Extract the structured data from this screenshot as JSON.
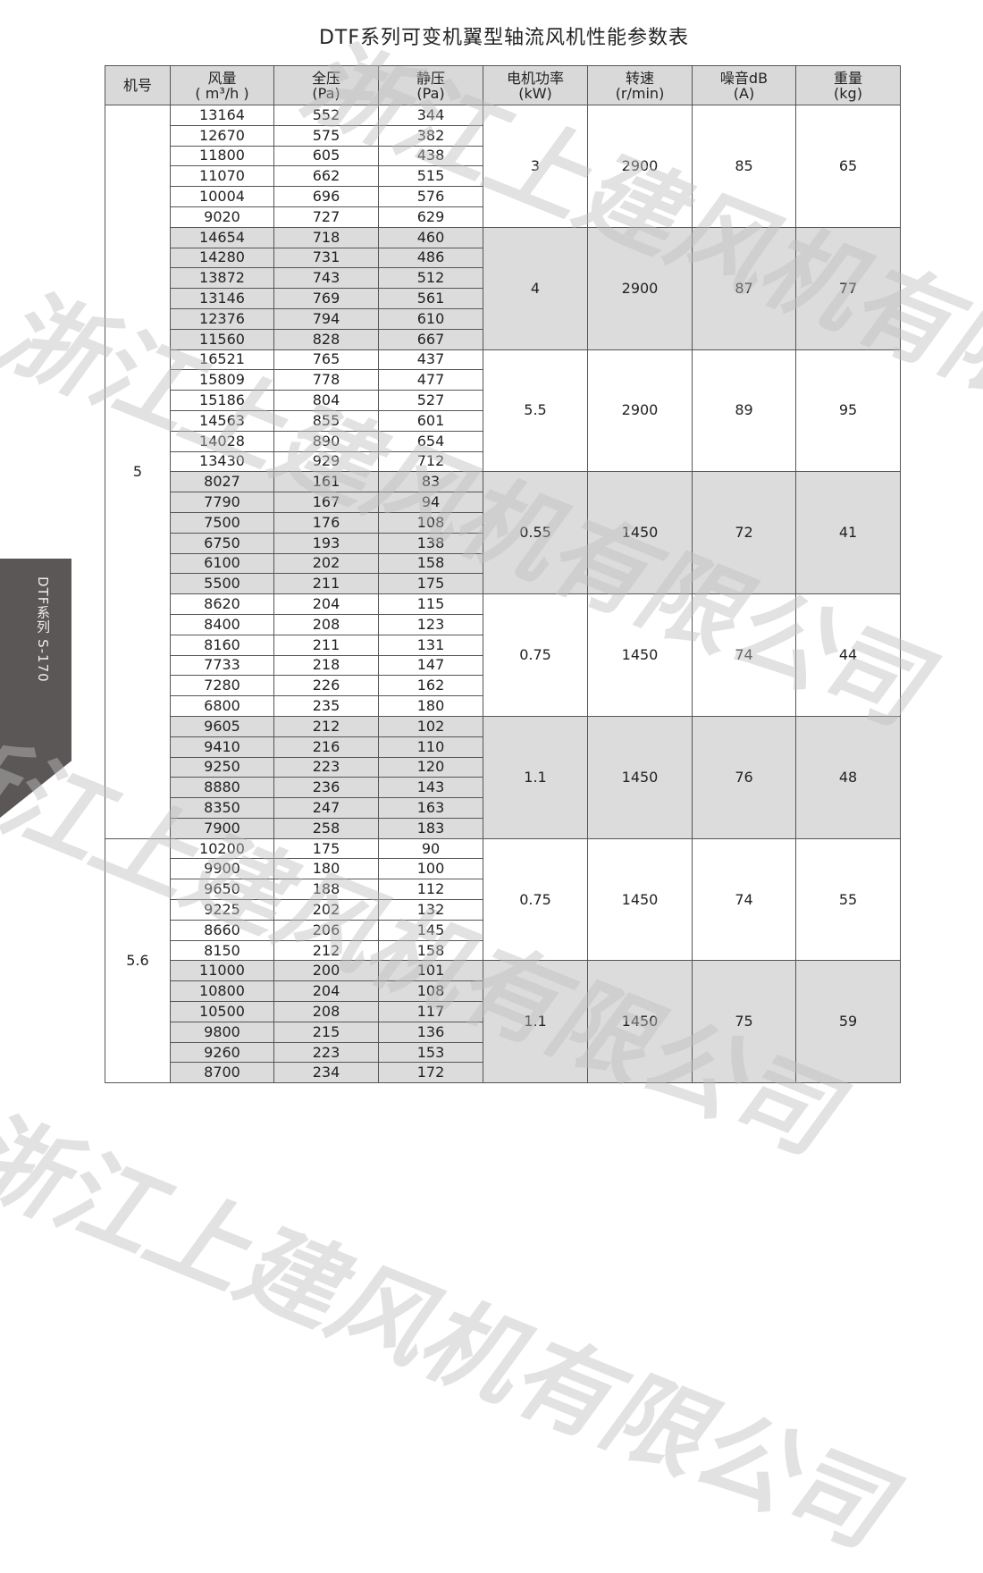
{
  "title": "DTF系列可变机翼型轴流风机性能参数表",
  "side_tab": "DTF系列  S-170",
  "watermark": "浙江上建风机有限公司",
  "headers": [
    [
      "机号"
    ],
    [
      "风量",
      "( m³/h )"
    ],
    [
      "全压",
      "(Pa)"
    ],
    [
      "静压",
      "(Pa)"
    ],
    [
      "电机功率",
      "(kW)"
    ],
    [
      "转速",
      "(r/min)"
    ],
    [
      "噪音dB",
      "(A)"
    ],
    [
      "重量",
      "(kg)"
    ]
  ],
  "machines": [
    {
      "number": "5",
      "groups": [
        {
          "power": "3",
          "speed": "2900",
          "noise": "85",
          "weight": "65",
          "rows": [
            [
              "13164",
              "552",
              "344"
            ],
            [
              "12670",
              "575",
              "382"
            ],
            [
              "11800",
              "605",
              "438"
            ],
            [
              "11070",
              "662",
              "515"
            ],
            [
              "10004",
              "696",
              "576"
            ],
            [
              "9020",
              "727",
              "629"
            ]
          ]
        },
        {
          "power": "4",
          "speed": "2900",
          "noise": "87",
          "weight": "77",
          "rows": [
            [
              "14654",
              "718",
              "460"
            ],
            [
              "14280",
              "731",
              "486"
            ],
            [
              "13872",
              "743",
              "512"
            ],
            [
              "13146",
              "769",
              "561"
            ],
            [
              "12376",
              "794",
              "610"
            ],
            [
              "11560",
              "828",
              "667"
            ]
          ]
        },
        {
          "power": "5.5",
          "speed": "2900",
          "noise": "89",
          "weight": "95",
          "rows": [
            [
              "16521",
              "765",
              "437"
            ],
            [
              "15809",
              "778",
              "477"
            ],
            [
              "15186",
              "804",
              "527"
            ],
            [
              "14563",
              "855",
              "601"
            ],
            [
              "14028",
              "890",
              "654"
            ],
            [
              "13430",
              "929",
              "712"
            ]
          ]
        },
        {
          "power": "0.55",
          "speed": "1450",
          "noise": "72",
          "weight": "41",
          "rows": [
            [
              "8027",
              "161",
              "83"
            ],
            [
              "7790",
              "167",
              "94"
            ],
            [
              "7500",
              "176",
              "108"
            ],
            [
              "6750",
              "193",
              "138"
            ],
            [
              "6100",
              "202",
              "158"
            ],
            [
              "5500",
              "211",
              "175"
            ]
          ]
        },
        {
          "power": "0.75",
          "speed": "1450",
          "noise": "74",
          "weight": "44",
          "rows": [
            [
              "8620",
              "204",
              "115"
            ],
            [
              "8400",
              "208",
              "123"
            ],
            [
              "8160",
              "211",
              "131"
            ],
            [
              "7733",
              "218",
              "147"
            ],
            [
              "7280",
              "226",
              "162"
            ],
            [
              "6800",
              "235",
              "180"
            ]
          ]
        },
        {
          "power": "1.1",
          "speed": "1450",
          "noise": "76",
          "weight": "48",
          "rows": [
            [
              "9605",
              "212",
              "102"
            ],
            [
              "9410",
              "216",
              "110"
            ],
            [
              "9250",
              "223",
              "120"
            ],
            [
              "8880",
              "236",
              "143"
            ],
            [
              "8350",
              "247",
              "163"
            ],
            [
              "7900",
              "258",
              "183"
            ]
          ]
        }
      ]
    },
    {
      "number": "5.6",
      "groups": [
        {
          "power": "0.75",
          "speed": "1450",
          "noise": "74",
          "weight": "55",
          "rows": [
            [
              "10200",
              "175",
              "90"
            ],
            [
              "9900",
              "180",
              "100"
            ],
            [
              "9650",
              "188",
              "112"
            ],
            [
              "9225",
              "202",
              "132"
            ],
            [
              "8660",
              "206",
              "145"
            ],
            [
              "8150",
              "212",
              "158"
            ]
          ]
        },
        {
          "power": "1.1",
          "speed": "1450",
          "noise": "75",
          "weight": "59",
          "rows": [
            [
              "11000",
              "200",
              "101"
            ],
            [
              "10800",
              "204",
              "108"
            ],
            [
              "10500",
              "208",
              "117"
            ],
            [
              "9800",
              "215",
              "136"
            ],
            [
              "9260",
              "223",
              "153"
            ],
            [
              "8700",
              "234",
              "172"
            ]
          ]
        }
      ]
    }
  ],
  "colors": {
    "shaded": "#dcdcdc",
    "header": "#d9d9d9",
    "side_tab": "#5b5757"
  }
}
